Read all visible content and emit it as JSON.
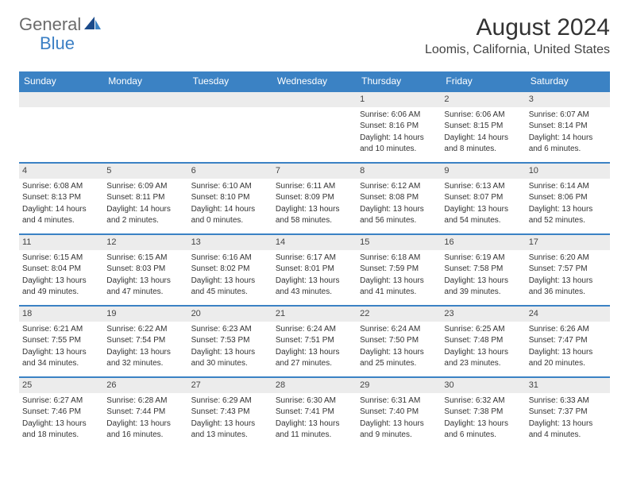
{
  "logo": {
    "general": "General",
    "blue": "Blue"
  },
  "title": "August 2024",
  "location": "Loomis, California, United States",
  "colors": {
    "header_bar": "#3b82c4",
    "day_num_bg": "#ececec",
    "logo_blue": "#3b7fc4",
    "logo_gray": "#6b6b6b"
  },
  "day_names": [
    "Sunday",
    "Monday",
    "Tuesday",
    "Wednesday",
    "Thursday",
    "Friday",
    "Saturday"
  ],
  "weeks": [
    [
      {
        "num": "",
        "lines": []
      },
      {
        "num": "",
        "lines": []
      },
      {
        "num": "",
        "lines": []
      },
      {
        "num": "",
        "lines": []
      },
      {
        "num": "1",
        "lines": [
          "Sunrise: 6:06 AM",
          "Sunset: 8:16 PM",
          "Daylight: 14 hours",
          "and 10 minutes."
        ]
      },
      {
        "num": "2",
        "lines": [
          "Sunrise: 6:06 AM",
          "Sunset: 8:15 PM",
          "Daylight: 14 hours",
          "and 8 minutes."
        ]
      },
      {
        "num": "3",
        "lines": [
          "Sunrise: 6:07 AM",
          "Sunset: 8:14 PM",
          "Daylight: 14 hours",
          "and 6 minutes."
        ]
      }
    ],
    [
      {
        "num": "4",
        "lines": [
          "Sunrise: 6:08 AM",
          "Sunset: 8:13 PM",
          "Daylight: 14 hours",
          "and 4 minutes."
        ]
      },
      {
        "num": "5",
        "lines": [
          "Sunrise: 6:09 AM",
          "Sunset: 8:11 PM",
          "Daylight: 14 hours",
          "and 2 minutes."
        ]
      },
      {
        "num": "6",
        "lines": [
          "Sunrise: 6:10 AM",
          "Sunset: 8:10 PM",
          "Daylight: 14 hours",
          "and 0 minutes."
        ]
      },
      {
        "num": "7",
        "lines": [
          "Sunrise: 6:11 AM",
          "Sunset: 8:09 PM",
          "Daylight: 13 hours",
          "and 58 minutes."
        ]
      },
      {
        "num": "8",
        "lines": [
          "Sunrise: 6:12 AM",
          "Sunset: 8:08 PM",
          "Daylight: 13 hours",
          "and 56 minutes."
        ]
      },
      {
        "num": "9",
        "lines": [
          "Sunrise: 6:13 AM",
          "Sunset: 8:07 PM",
          "Daylight: 13 hours",
          "and 54 minutes."
        ]
      },
      {
        "num": "10",
        "lines": [
          "Sunrise: 6:14 AM",
          "Sunset: 8:06 PM",
          "Daylight: 13 hours",
          "and 52 minutes."
        ]
      }
    ],
    [
      {
        "num": "11",
        "lines": [
          "Sunrise: 6:15 AM",
          "Sunset: 8:04 PM",
          "Daylight: 13 hours",
          "and 49 minutes."
        ]
      },
      {
        "num": "12",
        "lines": [
          "Sunrise: 6:15 AM",
          "Sunset: 8:03 PM",
          "Daylight: 13 hours",
          "and 47 minutes."
        ]
      },
      {
        "num": "13",
        "lines": [
          "Sunrise: 6:16 AM",
          "Sunset: 8:02 PM",
          "Daylight: 13 hours",
          "and 45 minutes."
        ]
      },
      {
        "num": "14",
        "lines": [
          "Sunrise: 6:17 AM",
          "Sunset: 8:01 PM",
          "Daylight: 13 hours",
          "and 43 minutes."
        ]
      },
      {
        "num": "15",
        "lines": [
          "Sunrise: 6:18 AM",
          "Sunset: 7:59 PM",
          "Daylight: 13 hours",
          "and 41 minutes."
        ]
      },
      {
        "num": "16",
        "lines": [
          "Sunrise: 6:19 AM",
          "Sunset: 7:58 PM",
          "Daylight: 13 hours",
          "and 39 minutes."
        ]
      },
      {
        "num": "17",
        "lines": [
          "Sunrise: 6:20 AM",
          "Sunset: 7:57 PM",
          "Daylight: 13 hours",
          "and 36 minutes."
        ]
      }
    ],
    [
      {
        "num": "18",
        "lines": [
          "Sunrise: 6:21 AM",
          "Sunset: 7:55 PM",
          "Daylight: 13 hours",
          "and 34 minutes."
        ]
      },
      {
        "num": "19",
        "lines": [
          "Sunrise: 6:22 AM",
          "Sunset: 7:54 PM",
          "Daylight: 13 hours",
          "and 32 minutes."
        ]
      },
      {
        "num": "20",
        "lines": [
          "Sunrise: 6:23 AM",
          "Sunset: 7:53 PM",
          "Daylight: 13 hours",
          "and 30 minutes."
        ]
      },
      {
        "num": "21",
        "lines": [
          "Sunrise: 6:24 AM",
          "Sunset: 7:51 PM",
          "Daylight: 13 hours",
          "and 27 minutes."
        ]
      },
      {
        "num": "22",
        "lines": [
          "Sunrise: 6:24 AM",
          "Sunset: 7:50 PM",
          "Daylight: 13 hours",
          "and 25 minutes."
        ]
      },
      {
        "num": "23",
        "lines": [
          "Sunrise: 6:25 AM",
          "Sunset: 7:48 PM",
          "Daylight: 13 hours",
          "and 23 minutes."
        ]
      },
      {
        "num": "24",
        "lines": [
          "Sunrise: 6:26 AM",
          "Sunset: 7:47 PM",
          "Daylight: 13 hours",
          "and 20 minutes."
        ]
      }
    ],
    [
      {
        "num": "25",
        "lines": [
          "Sunrise: 6:27 AM",
          "Sunset: 7:46 PM",
          "Daylight: 13 hours",
          "and 18 minutes."
        ]
      },
      {
        "num": "26",
        "lines": [
          "Sunrise: 6:28 AM",
          "Sunset: 7:44 PM",
          "Daylight: 13 hours",
          "and 16 minutes."
        ]
      },
      {
        "num": "27",
        "lines": [
          "Sunrise: 6:29 AM",
          "Sunset: 7:43 PM",
          "Daylight: 13 hours",
          "and 13 minutes."
        ]
      },
      {
        "num": "28",
        "lines": [
          "Sunrise: 6:30 AM",
          "Sunset: 7:41 PM",
          "Daylight: 13 hours",
          "and 11 minutes."
        ]
      },
      {
        "num": "29",
        "lines": [
          "Sunrise: 6:31 AM",
          "Sunset: 7:40 PM",
          "Daylight: 13 hours",
          "and 9 minutes."
        ]
      },
      {
        "num": "30",
        "lines": [
          "Sunrise: 6:32 AM",
          "Sunset: 7:38 PM",
          "Daylight: 13 hours",
          "and 6 minutes."
        ]
      },
      {
        "num": "31",
        "lines": [
          "Sunrise: 6:33 AM",
          "Sunset: 7:37 PM",
          "Daylight: 13 hours",
          "and 4 minutes."
        ]
      }
    ]
  ]
}
